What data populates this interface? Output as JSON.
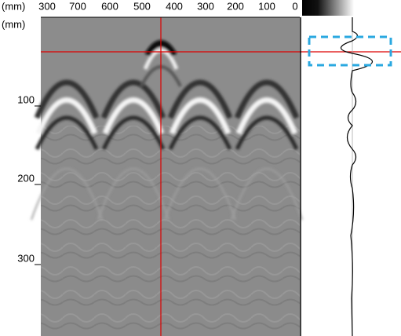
{
  "top_axis": {
    "unit": "(mm)",
    "labels": [
      "300",
      "700",
      "600",
      "500",
      "400",
      "300",
      "200",
      "100",
      "0"
    ]
  },
  "left_axis": {
    "unit": "(mm)",
    "labels": [
      "100",
      "200",
      "300"
    ]
  }
}
